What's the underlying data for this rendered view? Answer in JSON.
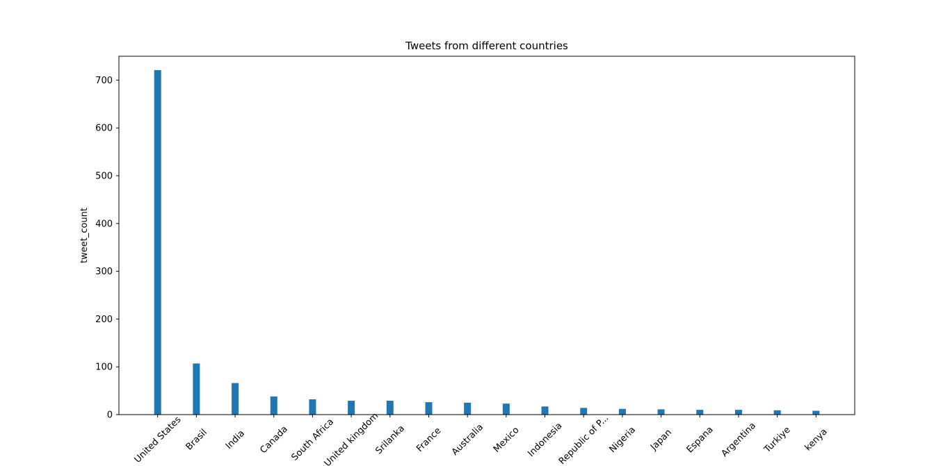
{
  "chart_data": {
    "type": "bar",
    "title": "Tweets from different countries",
    "xlabel": "",
    "ylabel": "tweet_count",
    "ylim": [
      0,
      750
    ],
    "yticks": [
      0,
      100,
      200,
      300,
      400,
      500,
      600,
      700
    ],
    "grid": false,
    "bar_color": "#1f77b4",
    "categories": [
      "United States",
      "Brasil",
      "India",
      "Canada",
      "South Africa",
      "United kingdom",
      "Srilanka",
      "France",
      "Australia",
      "Mexico",
      "Indonesia",
      "Republic of P...",
      "Nigeria",
      "Japan",
      "Espana",
      "Argentina",
      "Turkiye",
      "kenya"
    ],
    "values": [
      721,
      107,
      66,
      38,
      32,
      29,
      29,
      26,
      25,
      23,
      17,
      14,
      12,
      11,
      10,
      10,
      9,
      8
    ]
  }
}
